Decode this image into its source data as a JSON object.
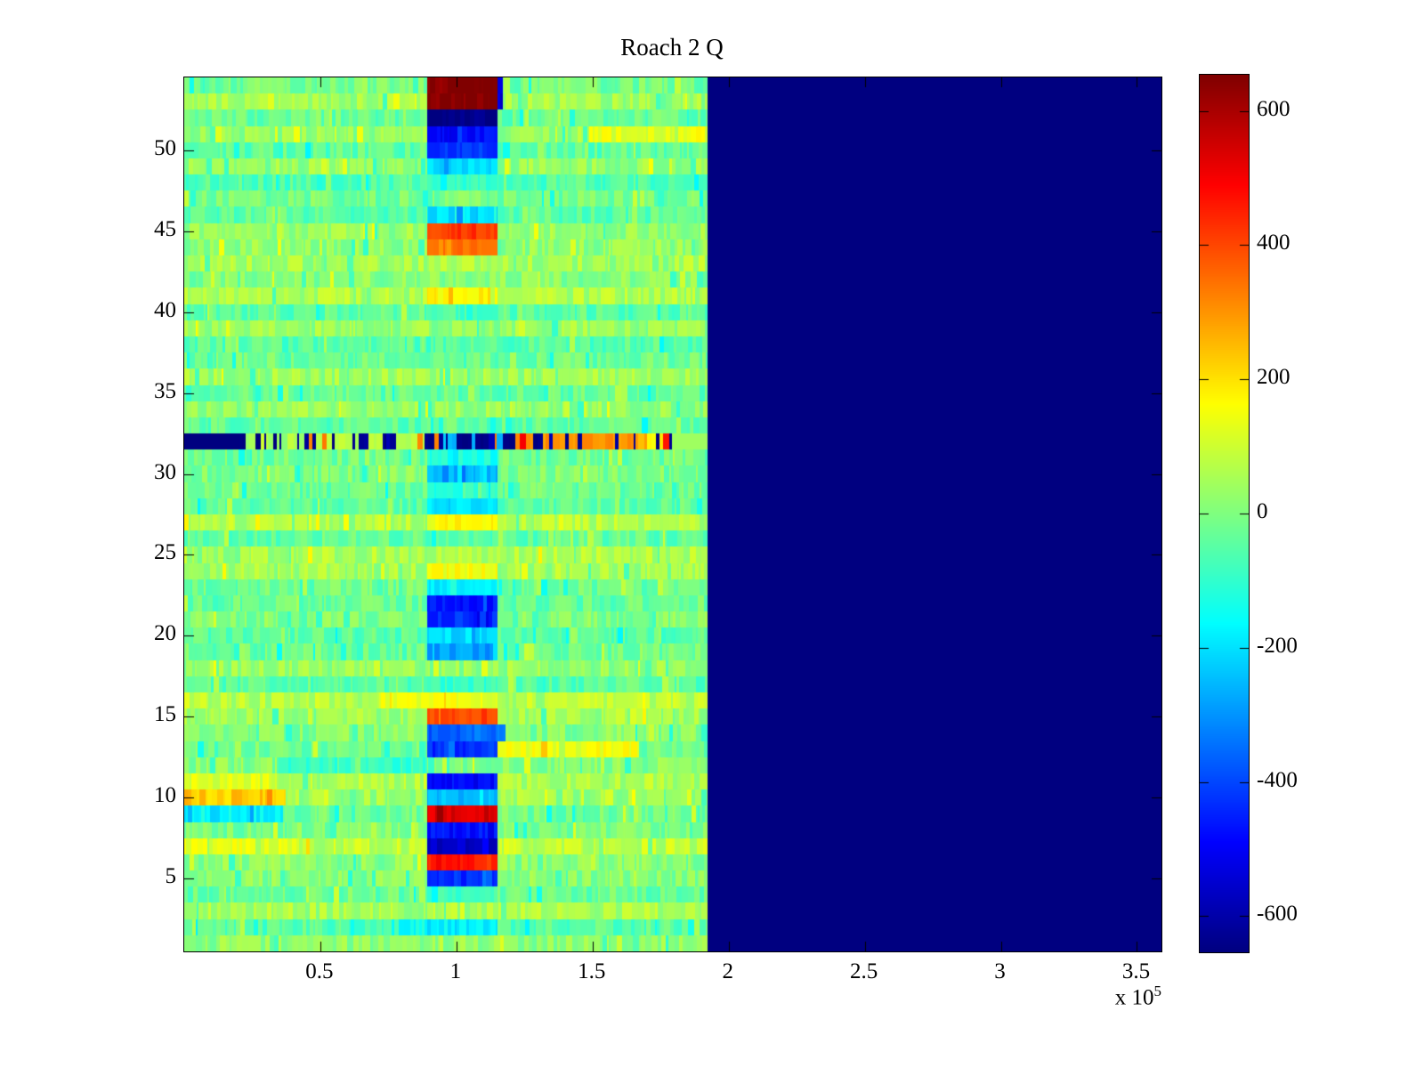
{
  "title": "Roach 2 Q",
  "axes": {
    "x_ticks": [
      {
        "value": 50000,
        "label": "0.5"
      },
      {
        "value": 100000,
        "label": "1"
      },
      {
        "value": 150000,
        "label": "1.5"
      },
      {
        "value": 200000,
        "label": "2"
      },
      {
        "value": 250000,
        "label": "2.5"
      },
      {
        "value": 300000,
        "label": "3"
      },
      {
        "value": 350000,
        "label": "3.5"
      }
    ],
    "y_ticks": [
      {
        "value": 5,
        "label": "5"
      },
      {
        "value": 10,
        "label": "10"
      },
      {
        "value": 15,
        "label": "15"
      },
      {
        "value": 20,
        "label": "20"
      },
      {
        "value": 25,
        "label": "25"
      },
      {
        "value": 30,
        "label": "30"
      },
      {
        "value": 35,
        "label": "35"
      },
      {
        "value": 40,
        "label": "40"
      },
      {
        "value": 45,
        "label": "45"
      },
      {
        "value": 50,
        "label": "50"
      }
    ],
    "x_exponent": {
      "base": "x 10",
      "exp": "5"
    }
  },
  "colorbar": {
    "ticks": [
      {
        "value": 600,
        "label": "600"
      },
      {
        "value": 400,
        "label": "400"
      },
      {
        "value": 200,
        "label": "200"
      },
      {
        "value": 0,
        "label": "0"
      },
      {
        "value": -200,
        "label": "-200"
      },
      {
        "value": -400,
        "label": "-400"
      },
      {
        "value": -600,
        "label": "-600"
      }
    ]
  },
  "chart_data": {
    "type": "heatmap",
    "title": "Roach 2 Q",
    "colormap": "jet",
    "clim": [
      -654,
      654
    ],
    "x_range": [
      0,
      359000
    ],
    "rows": 54,
    "legend_position": "right-colorbar",
    "grid": false,
    "base_row_values": [
      20,
      -50,
      50,
      -30,
      10,
      15,
      80,
      -10,
      -20,
      40,
      60,
      10,
      -20,
      5,
      45,
      70,
      -45,
      25,
      -25,
      -45,
      5,
      -30,
      -25,
      45,
      55,
      -35,
      65,
      -45,
      -25,
      0,
      -20,
      40,
      -40,
      30,
      -35,
      40,
      -25,
      -55,
      30,
      -45,
      55,
      10,
      45,
      25,
      30,
      -45,
      -15,
      -60,
      30,
      -45,
      25,
      -30,
      40,
      -15
    ],
    "right_blank_region": {
      "x0": 192000,
      "value": -654
    },
    "feature_band": {
      "x0": 89000,
      "x1": 115000,
      "row_values": [
        null,
        -190,
        null,
        -80,
        -430,
        470,
        -560,
        -470,
        540,
        -250,
        -470,
        null,
        -430,
        -370,
        400,
        140,
        -90,
        null,
        -290,
        -210,
        -440,
        -460,
        -190,
        150,
        60,
        -50,
        160,
        -210,
        -110,
        -260,
        -130,
        null,
        null,
        null,
        null,
        null,
        null,
        null,
        null,
        -70,
        170,
        null,
        60,
        330,
        420,
        -210,
        null,
        -90,
        -220,
        -420,
        -490,
        -654,
        654,
        654
      ]
    },
    "left_features": [
      {
        "row": 11,
        "x0": 0,
        "x1": 34000,
        "value": 120
      },
      {
        "row": 10,
        "x0": 0,
        "x1": 37000,
        "value": 230
      },
      {
        "row": 9,
        "x0": 0,
        "x1": 36000,
        "value": -180
      },
      {
        "row": 7,
        "x0": 0,
        "x1": 42000,
        "value": 130
      },
      {
        "row": 12,
        "x0": 34000,
        "x1": 89000,
        "value": -90
      },
      {
        "row": 2,
        "x0": 76000,
        "x1": 89000,
        "value": -140
      },
      {
        "row": 16,
        "x0": 72000,
        "x1": 89000,
        "value": 130
      },
      {
        "row": 13,
        "x0": 115000,
        "x1": 167000,
        "value": 140
      },
      {
        "row": 14,
        "x0": 115000,
        "x1": 118000,
        "value": -350
      },
      {
        "row": 51,
        "x0": 148000,
        "x1": 192000,
        "value": 130
      },
      {
        "row": 53,
        "x0": 115000,
        "x1": 117000,
        "value": -550
      },
      {
        "row": 54,
        "x0": 115000,
        "x1": 117000,
        "value": -550
      }
    ],
    "row32_stripe_segments": [
      {
        "x0": 0,
        "x1": 20000,
        "value": -654
      },
      {
        "x0": 20000,
        "x1": 30000,
        "value": -654,
        "alt": [
          [
            50,
            0.4
          ]
        ]
      },
      {
        "x0": 30000,
        "x1": 47000,
        "value": 55,
        "alt": [
          [
            -630,
            0.2
          ],
          [
            300,
            0.05
          ]
        ]
      },
      {
        "x0": 47000,
        "x1": 88000,
        "value": 70,
        "alt": [
          [
            -640,
            0.35
          ],
          [
            330,
            0.13
          ]
        ]
      },
      {
        "x0": 88000,
        "x1": 122000,
        "value": -640,
        "alt": [
          [
            320,
            0.14
          ],
          [
            -250,
            0.18
          ]
        ]
      },
      {
        "x0": 122000,
        "x1": 170000,
        "value": 300,
        "alt": [
          [
            -630,
            0.1
          ],
          [
            480,
            0.12
          ]
        ]
      },
      {
        "x0": 170000,
        "x1": 179000,
        "value": 180,
        "alt": [
          [
            -640,
            0.3
          ],
          [
            450,
            0.2
          ]
        ]
      },
      {
        "x0": 179000,
        "x1": 192000,
        "value": 40
      }
    ],
    "noise_amplitude": 55
  }
}
